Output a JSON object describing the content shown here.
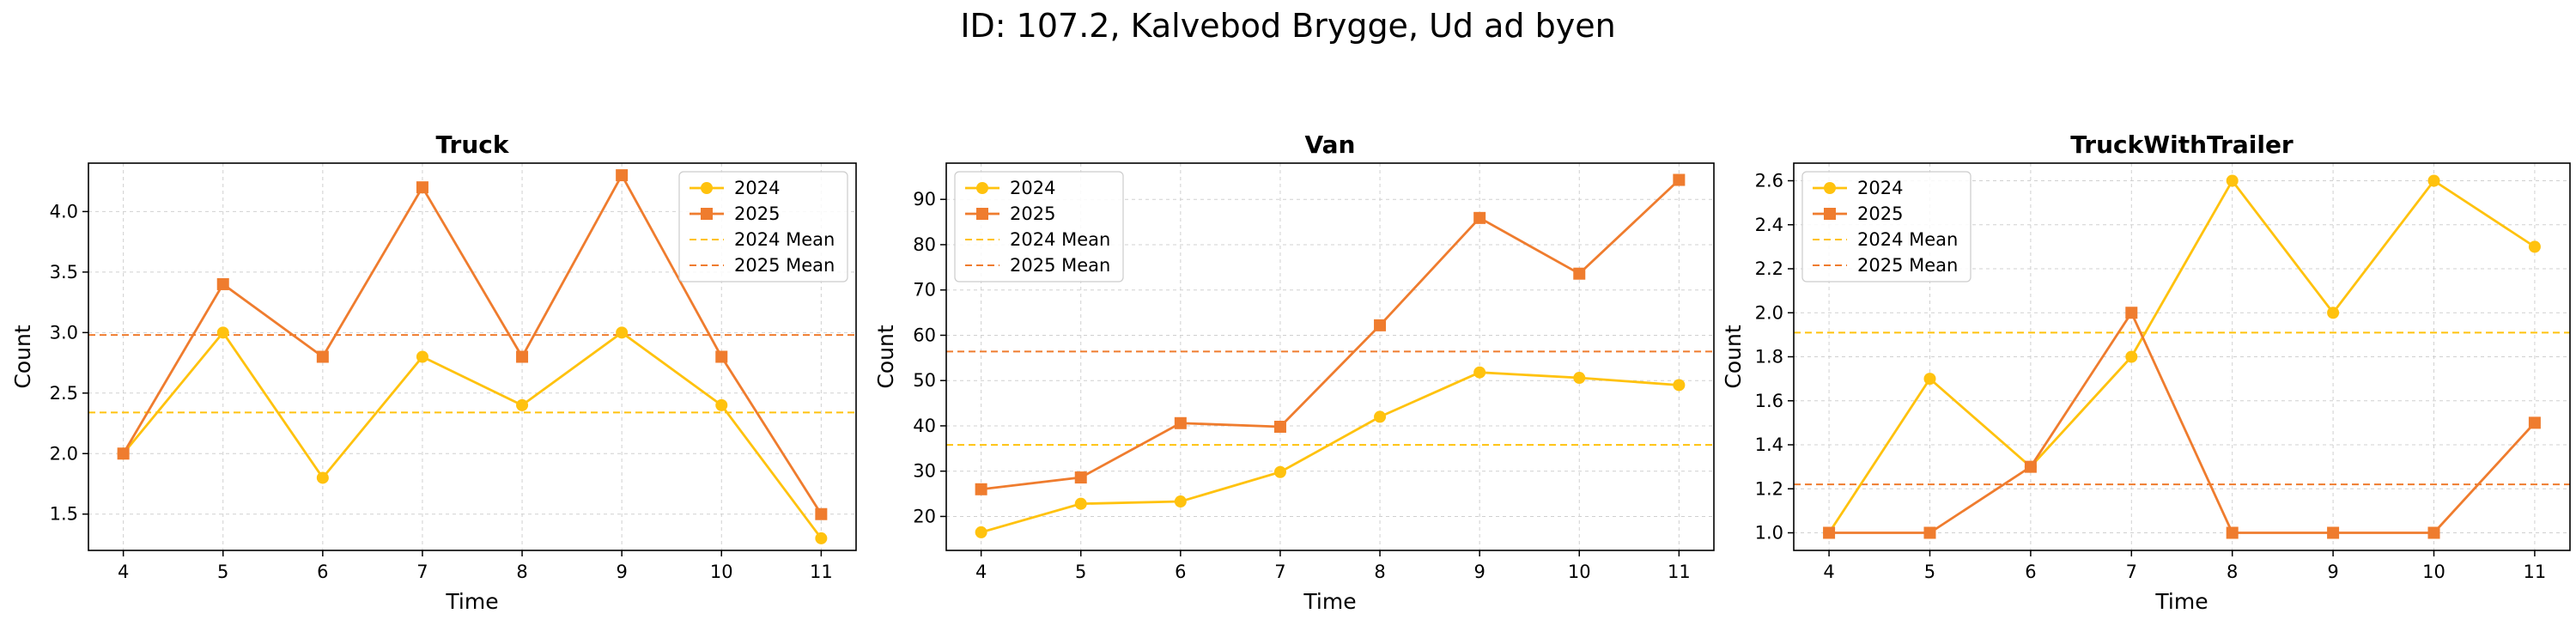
{
  "suptitle": "ID: 107.2, Kalvebod Brygge, Ud ad byen",
  "colors": {
    "y2024": "#FFC20E",
    "y2025": "#EF7C2E",
    "grid": "#d0d0d0"
  },
  "chart_data": [
    {
      "type": "line",
      "title": "Truck",
      "xlabel": "Time",
      "ylabel": "Count",
      "x": [
        4,
        5,
        6,
        7,
        8,
        9,
        10,
        11
      ],
      "ylim": [
        1.2,
        4.4
      ],
      "yticks": [
        1.5,
        2.0,
        2.5,
        3.0,
        3.5,
        4.0
      ],
      "ytick_labels": [
        "1.5",
        "2.0",
        "2.5",
        "3.0",
        "3.5",
        "4.0"
      ],
      "grid": true,
      "legend_loc": "upper right",
      "series": [
        {
          "name": "2024",
          "marker": "circle",
          "values": [
            2.0,
            3.0,
            1.8,
            2.8,
            2.4,
            3.0,
            2.4,
            1.3
          ]
        },
        {
          "name": "2025",
          "marker": "square",
          "values": [
            2.0,
            3.4,
            2.8,
            4.2,
            2.8,
            4.3,
            2.8,
            1.5
          ]
        }
      ],
      "means": [
        {
          "name": "2024 Mean",
          "value": 2.34
        },
        {
          "name": "2025 Mean",
          "value": 2.98
        }
      ]
    },
    {
      "type": "line",
      "title": "Van",
      "xlabel": "Time",
      "ylabel": "Count",
      "x": [
        4,
        5,
        6,
        7,
        8,
        9,
        10,
        11
      ],
      "ylim": [
        12.5,
        98
      ],
      "yticks": [
        20,
        30,
        40,
        50,
        60,
        70,
        80,
        90
      ],
      "ytick_labels": [
        "20",
        "30",
        "40",
        "50",
        "60",
        "70",
        "80",
        "90"
      ],
      "grid": true,
      "legend_loc": "upper left",
      "series": [
        {
          "name": "2024",
          "marker": "circle",
          "values": [
            16.5,
            22.8,
            23.3,
            29.8,
            42.0,
            51.8,
            50.6,
            49.0
          ]
        },
        {
          "name": "2025",
          "marker": "square",
          "values": [
            26.0,
            28.6,
            40.6,
            39.8,
            62.2,
            85.9,
            73.6,
            94.3
          ]
        }
      ],
      "means": [
        {
          "name": "2024 Mean",
          "value": 35.8
        },
        {
          "name": "2025 Mean",
          "value": 56.4
        }
      ]
    },
    {
      "type": "line",
      "title": "TruckWithTrailer",
      "xlabel": "Time",
      "ylabel": "Count",
      "x": [
        4,
        5,
        6,
        7,
        8,
        9,
        10,
        11
      ],
      "ylim": [
        0.92,
        2.68
      ],
      "yticks": [
        1.0,
        1.2,
        1.4,
        1.6,
        1.8,
        2.0,
        2.2,
        2.4,
        2.6
      ],
      "ytick_labels": [
        "1.0",
        "1.2",
        "1.4",
        "1.6",
        "1.8",
        "2.0",
        "2.2",
        "2.4",
        "2.6"
      ],
      "grid": true,
      "legend_loc": "upper left",
      "series": [
        {
          "name": "2024",
          "marker": "circle",
          "values": [
            1.0,
            1.7,
            1.3,
            1.8,
            2.6,
            2.0,
            2.6,
            2.3
          ]
        },
        {
          "name": "2025",
          "marker": "square",
          "values": [
            1.0,
            1.0,
            1.3,
            2.0,
            1.0,
            1.0,
            1.0,
            1.5
          ]
        }
      ],
      "means": [
        {
          "name": "2024 Mean",
          "value": 1.91
        },
        {
          "name": "2025 Mean",
          "value": 1.22
        }
      ]
    }
  ]
}
